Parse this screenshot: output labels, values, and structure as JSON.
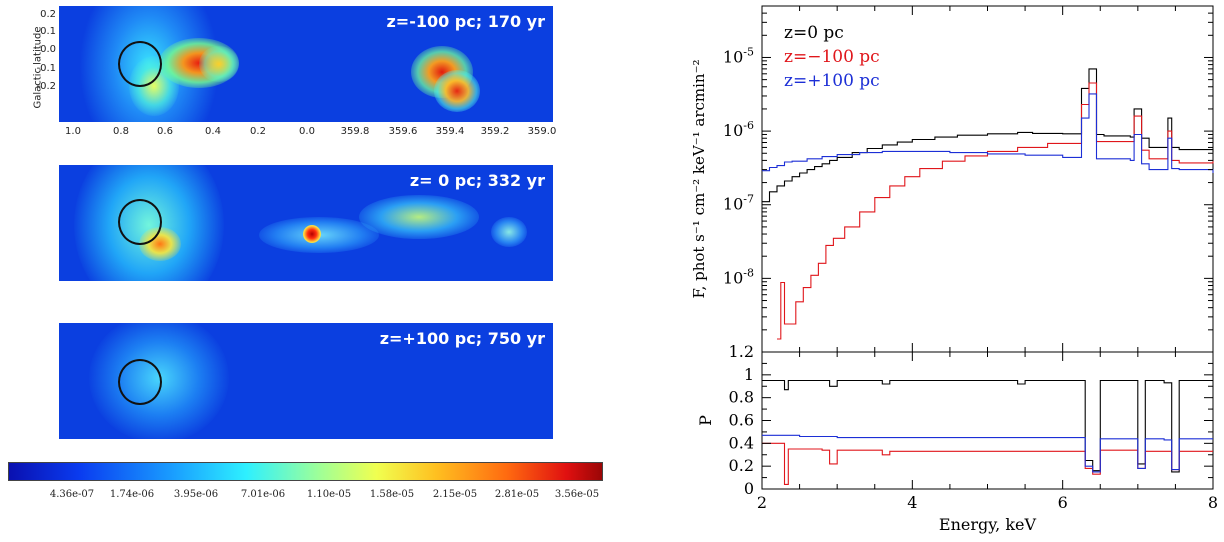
{
  "map_panels": [
    {
      "label": "z=-100 pc; 170 yr"
    },
    {
      "label": "z=  0 pc; 332 yr"
    },
    {
      "label": "z=+100 pc; 750 yr"
    }
  ],
  "map_axes": {
    "ylabel": "Galactic latitude",
    "lat_ticks": [
      "0.2",
      "0.1",
      "0.0",
      "-0.1",
      "-0.2"
    ],
    "lon_ticks": [
      "1.0",
      "0.8",
      "0.6",
      "0.4",
      "0.2",
      "0.0",
      "359.8",
      "359.6",
      "359.4",
      "359.2",
      "359.0"
    ]
  },
  "colorbar": {
    "ticks": [
      "4.36e-07",
      "1.74e-06",
      "3.95e-06",
      "7.01e-06",
      "1.10e-05",
      "1.58e-05",
      "2.15e-05",
      "2.81e-05",
      "3.56e-05"
    ]
  },
  "chart_data": [
    {
      "type": "line",
      "title": "",
      "xlabel": "",
      "ylabel": "F, phot s⁻¹ cm⁻² keV⁻¹ arcmin⁻²",
      "xlim": [
        2,
        8
      ],
      "ylim": [
        1e-09,
        5e-05
      ],
      "yscale": "log",
      "yticks": [
        {
          "v": 1e-08,
          "label": "10",
          "exp": "-8"
        },
        {
          "v": 1e-07,
          "label": "10",
          "exp": "-7"
        },
        {
          "v": 1e-06,
          "label": "10",
          "exp": "-6"
        },
        {
          "v": 1e-05,
          "label": "10",
          "exp": "-5"
        }
      ],
      "legend_position": "top-left",
      "series": [
        {
          "name": "z=0 pc",
          "color": "#000000",
          "x": [
            2.0,
            2.1,
            2.2,
            2.3,
            2.4,
            2.5,
            2.6,
            2.7,
            2.8,
            2.9,
            3.0,
            3.2,
            3.4,
            3.6,
            3.8,
            4.0,
            4.3,
            4.6,
            5.0,
            5.4,
            5.6,
            6.0,
            6.25,
            6.35,
            6.45,
            6.55,
            6.9,
            6.95,
            7.05,
            7.15,
            7.4,
            7.45,
            7.55,
            8.0
          ],
          "y": [
            1.1e-07,
            1.5e-07,
            1.8e-07,
            2.1e-07,
            2.4e-07,
            2.7e-07,
            3e-07,
            3.3e-07,
            3.6e-07,
            4e-07,
            4.4e-07,
            5.1e-07,
            5.8e-07,
            6.5e-07,
            7.1e-07,
            7.7e-07,
            8.3e-07,
            8.8e-07,
            9.2e-07,
            9.6e-07,
            9.3e-07,
            9.2e-07,
            3.8e-06,
            7e-06,
            9e-07,
            8.6e-07,
            8.3e-07,
            2e-06,
            8e-07,
            6e-07,
            1.5e-06,
            6e-07,
            5.6e-07,
            5.2e-07
          ]
        },
        {
          "name": "z=−100 pc",
          "color": "#e0161b",
          "x": [
            2.2,
            2.25,
            2.3,
            2.35,
            2.45,
            2.55,
            2.65,
            2.75,
            2.85,
            2.95,
            3.1,
            3.3,
            3.5,
            3.7,
            3.9,
            4.1,
            4.4,
            4.7,
            5.0,
            5.4,
            5.8,
            6.25,
            6.35,
            6.45,
            6.9,
            6.95,
            7.05,
            7.15,
            7.35,
            7.4,
            7.45,
            7.55,
            8.0
          ],
          "y": [
            1.5e-09,
            8.8e-09,
            2.4e-09,
            2.4e-09,
            4.8e-09,
            7.5e-09,
            1.1e-08,
            1.6e-08,
            2.8e-08,
            3.5e-08,
            5e-08,
            8e-08,
            1.25e-07,
            1.8e-07,
            2.4e-07,
            3.1e-07,
            3.9e-07,
            4.6e-07,
            5.3e-07,
            6e-07,
            6.8e-07,
            2.3e-06,
            4.5e-06,
            7.2e-07,
            7.2e-07,
            1.6e-06,
            5.5e-07,
            4.2e-07,
            4.2e-07,
            1e-06,
            4e-07,
            3.7e-07,
            3.9e-07
          ]
        },
        {
          "name": "z=+100 pc",
          "color": "#1c2fd6",
          "x": [
            2.0,
            2.1,
            2.2,
            2.3,
            2.4,
            2.6,
            2.8,
            3.0,
            3.3,
            3.6,
            4.0,
            4.5,
            5.0,
            5.5,
            6.0,
            6.25,
            6.35,
            6.45,
            6.9,
            6.95,
            7.05,
            7.15,
            7.4,
            7.45,
            7.55,
            8.0
          ],
          "y": [
            2.9e-07,
            3.2e-07,
            3.4e-07,
            3.8e-07,
            3.9e-07,
            4.2e-07,
            4.5e-07,
            4.8e-07,
            5.1e-07,
            5.3e-07,
            5.3e-07,
            5.1e-07,
            4.9e-07,
            4.7e-07,
            4.4e-07,
            1.5e-06,
            3.2e-06,
            4.2e-07,
            4e-07,
            9e-07,
            3.6e-07,
            3e-07,
            8e-07,
            3.1e-07,
            3e-07,
            2.7e-07
          ]
        }
      ]
    },
    {
      "type": "line",
      "title": "",
      "xlabel": "Energy, keV",
      "ylabel": "P",
      "xlim": [
        2,
        8
      ],
      "ylim": [
        0,
        1.2
      ],
      "xticks": [
        "2",
        "4",
        "6",
        "8"
      ],
      "yticks": [
        "0",
        "0.2",
        "0.4",
        "0.6",
        "0.8",
        "1",
        "1.2"
      ],
      "series": [
        {
          "name": "z=0 pc",
          "color": "#000000",
          "x": [
            2.0,
            2.2,
            2.3,
            2.35,
            2.9,
            3.0,
            3.6,
            3.7,
            5.4,
            5.5,
            6.3,
            6.4,
            6.5,
            6.9,
            7.0,
            7.1,
            7.35,
            7.45,
            7.55,
            8.0
          ],
          "y": [
            0.95,
            0.95,
            0.87,
            0.95,
            0.9,
            0.95,
            0.92,
            0.95,
            0.92,
            0.95,
            0.25,
            0.16,
            0.95,
            0.95,
            0.22,
            0.95,
            0.93,
            0.15,
            0.95,
            0.95
          ]
        },
        {
          "name": "z=−100 pc",
          "color": "#e0161b",
          "x": [
            2.0,
            2.2,
            2.3,
            2.35,
            2.8,
            2.9,
            3.0,
            3.6,
            3.7,
            6.3,
            6.4,
            6.5,
            6.9,
            7.0,
            7.1,
            7.35,
            7.45,
            7.55,
            8.0
          ],
          "y": [
            0.4,
            0.4,
            0.04,
            0.35,
            0.34,
            0.22,
            0.34,
            0.3,
            0.33,
            0.18,
            0.13,
            0.34,
            0.34,
            0.18,
            0.33,
            0.33,
            0.17,
            0.33,
            0.33
          ]
        },
        {
          "name": "z=+100 pc",
          "color": "#1c2fd6",
          "x": [
            2.0,
            2.5,
            3.0,
            4.0,
            5.0,
            6.3,
            6.4,
            6.5,
            6.9,
            7.0,
            7.1,
            7.35,
            7.45,
            7.55,
            8.0
          ],
          "y": [
            0.47,
            0.46,
            0.45,
            0.45,
            0.45,
            0.2,
            0.15,
            0.44,
            0.44,
            0.18,
            0.44,
            0.43,
            0.17,
            0.44,
            0.44
          ]
        }
      ]
    }
  ]
}
